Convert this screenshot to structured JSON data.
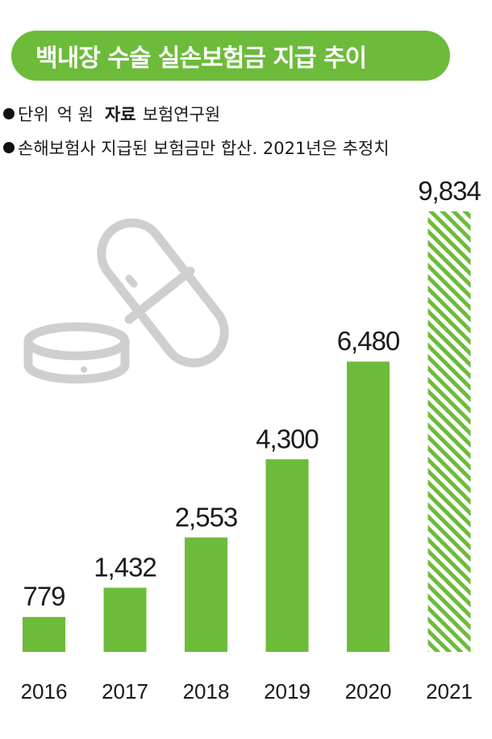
{
  "title": "백내장 수술 실손보험금 지급 추이",
  "notes": {
    "unit_prefix": "단위",
    "unit_value": "억 원",
    "source_label": "자료",
    "source_value": "보험연구원",
    "footnote": "손해보험사 지급된 보험금만 합산. 2021년은 추정치"
  },
  "colors": {
    "accent": "#6dbb3a",
    "bar": "#6dbb3a",
    "icon_stroke": "#cfcfcf"
  },
  "icons": [
    "capsule-icon",
    "tablet-icon"
  ],
  "chart_data": {
    "type": "bar",
    "categories": [
      "2016",
      "2017",
      "2018",
      "2019",
      "2020",
      "2021"
    ],
    "values": [
      779,
      1432,
      2553,
      4300,
      6480,
      9834
    ],
    "value_labels": [
      "779",
      "1,432",
      "2,553",
      "4,300",
      "6,480",
      "9,834"
    ],
    "estimated": [
      false,
      false,
      false,
      false,
      false,
      true
    ],
    "title": "백내장 수술 실손보험금 지급 추이",
    "xlabel": "",
    "ylabel": "",
    "ylim": [
      0,
      9834
    ],
    "grid": false,
    "legend": "none"
  }
}
